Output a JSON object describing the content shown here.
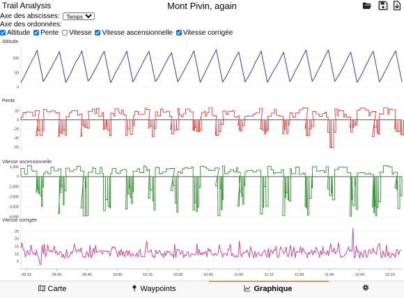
{
  "header": {
    "app_title": "Trail Analysis",
    "doc_title": "Mont Pivin, again",
    "icons": [
      "folder-open-icon",
      "save-icon",
      "download-icon"
    ]
  },
  "controls": {
    "x_axis_label": "Axe des abscisses:",
    "x_axis_value": "Temps",
    "y_axis_label": "Axe des ordonnées:",
    "checkboxes": [
      {
        "label": "Altitude",
        "checked": true
      },
      {
        "label": "Pente",
        "checked": true
      },
      {
        "label": "Vitesse",
        "checked": false
      },
      {
        "label": "Vitesse ascensionnelle",
        "checked": true
      },
      {
        "label": "Vitesse corrigée",
        "checked": true
      }
    ]
  },
  "chart_data": [
    {
      "type": "line",
      "title": "Altitude",
      "y_ticks": [
        100,
        50,
        0
      ],
      "ylim": [
        -5,
        145
      ],
      "color": "#2222cc",
      "pattern": "sawtooth",
      "x_ticks": [
        "09:15",
        "09:30",
        "09:45",
        "10:00",
        "10:15",
        "10:30",
        "10:45",
        "11:00",
        "11:15",
        "11:30",
        "11:45",
        "12:00",
        "12:15"
      ]
    },
    {
      "type": "line",
      "title": "Pente",
      "y_ticks": [
        20,
        0,
        -20,
        -40,
        -60
      ],
      "ylim": [
        -70,
        35
      ],
      "color": "#e53935",
      "pattern": "steps"
    },
    {
      "type": "line",
      "title": "Vitesse ascensionnelle",
      "y_ticks": [
        "1,000",
        "0",
        "-1,000",
        "-2,000",
        "-3,000",
        "-4,000"
      ],
      "ylim": [
        -4700,
        1400
      ],
      "color": "#2e8b2e",
      "pattern": "steps"
    },
    {
      "type": "line",
      "title": "Vitesse corrigée",
      "y_ticks": [
        25,
        20,
        15,
        10,
        5
      ],
      "ylim": [
        0,
        30
      ],
      "color": "#cc3399",
      "pattern": "noise"
    }
  ],
  "tabs": [
    {
      "label": "Carte",
      "icon": "map-icon"
    },
    {
      "label": "Waypoints",
      "icon": "pin-icon"
    },
    {
      "label": "Graphique",
      "icon": "chart-icon",
      "active": true
    },
    {
      "label": "",
      "icon": "gear-icon"
    }
  ]
}
